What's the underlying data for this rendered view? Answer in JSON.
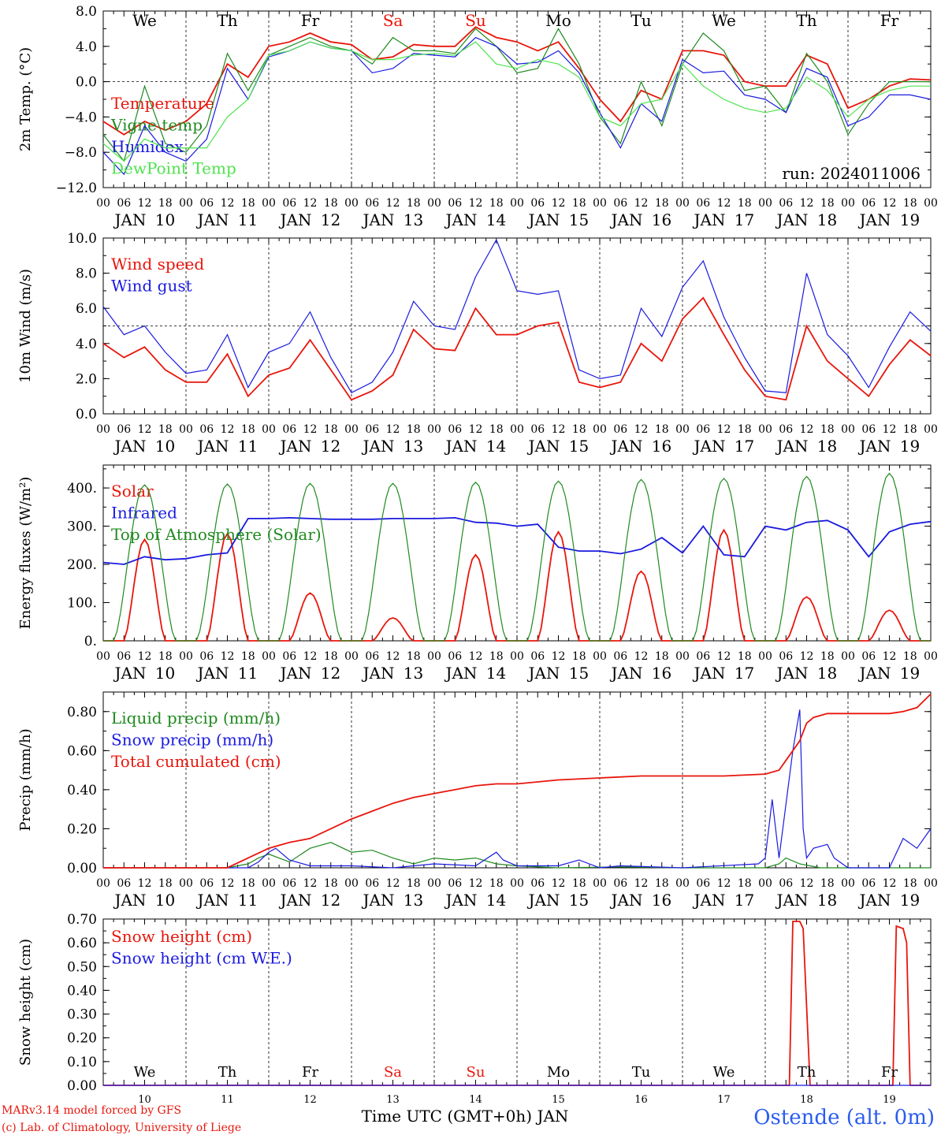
{
  "days": [
    "10",
    "11",
    "12",
    "13",
    "14",
    "15",
    "16",
    "17",
    "18",
    "19"
  ],
  "month": "JAN",
  "day_labels": [
    {
      "label": "We",
      "color": "#000000"
    },
    {
      "label": "Th",
      "color": "#000000"
    },
    {
      "label": "Fr",
      "color": "#000000"
    },
    {
      "label": "Sa",
      "color": "#e8160c"
    },
    {
      "label": "Su",
      "color": "#e8160c"
    },
    {
      "label": "Mo",
      "color": "#000000"
    },
    {
      "label": "Tu",
      "color": "#000000"
    },
    {
      "label": "We",
      "color": "#000000"
    },
    {
      "label": "Th",
      "color": "#000000"
    },
    {
      "label": "Fr",
      "color": "#000000"
    }
  ],
  "hour_ticks": [
    "00",
    "06",
    "12",
    "18"
  ],
  "run_label": "run: 2024011006",
  "xlabel": "Time UTC (GMT+0h) JAN",
  "station": "Ostende (alt. 0m)",
  "credit_line1": "MARv3.14 model forced by GFS",
  "credit_line2": "(c) Lab. of Climatology, University of Liege",
  "colors": {
    "red": "#e8160c",
    "green": "#1f8a1f",
    "blue": "#1a1ae0",
    "lightgreen": "#4ee34e",
    "station": "#2a5cf0"
  },
  "chart_data": [
    {
      "type": "line",
      "ylabel": "2m Temp. (°C)",
      "ylim": [
        -12,
        8
      ],
      "yticks": [
        {
          "v": 8,
          "label": "8.0"
        },
        {
          "v": 4,
          "label": "4.0"
        },
        {
          "v": 0,
          "label": "0.0"
        },
        {
          "v": -4,
          "label": "−4.0"
        },
        {
          "v": -8,
          "label": "−8.0"
        },
        {
          "v": -12,
          "label": "−12.0"
        }
      ],
      "reference_line": 0,
      "x_unit": "hours since Jan 10 00 UTC",
      "series": [
        {
          "name": "Temperature",
          "color": "red",
          "x": [
            0,
            6,
            12,
            18,
            24,
            30,
            36,
            42,
            48,
            54,
            60,
            66,
            72,
            78,
            84,
            90,
            96,
            102,
            108,
            114,
            120,
            126,
            132,
            138,
            144,
            150,
            156,
            162,
            168,
            174,
            180,
            186,
            192,
            198,
            204,
            210,
            216,
            222,
            228,
            234,
            240
          ],
          "y": [
            -4.5,
            -6,
            -4.5,
            -5.5,
            -4.5,
            -2.5,
            2,
            0.5,
            4,
            4.5,
            5.5,
            4.5,
            4.2,
            2.5,
            2.8,
            4.2,
            4,
            4,
            6.2,
            5,
            4.5,
            3.5,
            4.5,
            1.5,
            -2,
            -4.5,
            -1,
            -2,
            3.5,
            3.5,
            3,
            0,
            -0.5,
            -0.5,
            3,
            2,
            -3,
            -2,
            -0.5,
            0.3,
            0.2
          ]
        },
        {
          "name": "Vigne temp",
          "color": "green",
          "x": [
            0,
            6,
            12,
            18,
            24,
            30,
            36,
            42,
            48,
            54,
            60,
            66,
            72,
            78,
            84,
            90,
            96,
            102,
            108,
            114,
            120,
            126,
            132,
            138,
            144,
            150,
            156,
            162,
            168,
            174,
            180,
            186,
            192,
            198,
            204,
            210,
            216,
            222,
            228,
            234,
            240
          ],
          "y": [
            -6,
            -9,
            -0.5,
            -7,
            -8,
            -5,
            3.2,
            -1,
            3,
            4,
            5,
            4,
            3.5,
            2,
            5,
            3.5,
            3.5,
            3.2,
            6,
            4,
            1,
            1.5,
            6,
            2,
            -4,
            -7,
            0,
            -5,
            2,
            5.5,
            3.5,
            -1,
            -0.5,
            -3.5,
            3.2,
            0,
            -6,
            -2.5,
            0,
            0,
            0
          ]
        },
        {
          "name": "Humidex",
          "color": "blue",
          "x": [
            0,
            6,
            12,
            18,
            24,
            30,
            36,
            42,
            48,
            54,
            60,
            66,
            72,
            78,
            84,
            90,
            96,
            102,
            108,
            114,
            120,
            126,
            132,
            138,
            144,
            150,
            156,
            162,
            168,
            174,
            180,
            186,
            192,
            198,
            204,
            210,
            216,
            222,
            228,
            234,
            240
          ],
          "y": [
            -8,
            -10.5,
            -5,
            -8,
            -9,
            -6.5,
            1.5,
            -2,
            2.8,
            3.5,
            4.5,
            3.8,
            3.5,
            1,
            1.5,
            3.2,
            3,
            2.8,
            5,
            4,
            2,
            2.2,
            3.5,
            1,
            -3.5,
            -7.5,
            -2.5,
            -4.5,
            2.5,
            1,
            1.2,
            -1.5,
            -2,
            -3.5,
            1.5,
            0.5,
            -5,
            -4,
            -1.5,
            -1.5,
            -2
          ]
        },
        {
          "name": "DewPoint Temp",
          "color": "lightgreen",
          "x": [
            0,
            6,
            12,
            18,
            24,
            30,
            36,
            42,
            48,
            54,
            60,
            66,
            72,
            78,
            84,
            90,
            96,
            102,
            108,
            114,
            120,
            126,
            132,
            138,
            144,
            150,
            156,
            162,
            168,
            174,
            180,
            186,
            192,
            198,
            204,
            210,
            216,
            222,
            228,
            234,
            240
          ],
          "y": [
            -7,
            -9,
            -6.5,
            -7.5,
            -7.5,
            -7.5,
            -4,
            -2,
            3,
            3.5,
            4.5,
            3.8,
            3.5,
            2.5,
            2.5,
            3,
            3.2,
            3,
            4.5,
            2,
            1.5,
            2.5,
            2,
            0.5,
            -4,
            -5,
            -2.5,
            -2,
            2,
            -0.5,
            -2,
            -3,
            -3.5,
            -3,
            0.5,
            -1,
            -4,
            -2,
            -1,
            -0.5,
            -0.5
          ]
        }
      ]
    },
    {
      "type": "line",
      "ylabel": "10m Wind (m/s)",
      "ylim": [
        0,
        10
      ],
      "yticks": [
        {
          "v": 10,
          "label": "10.0"
        },
        {
          "v": 8,
          "label": "8.0"
        },
        {
          "v": 6,
          "label": "6.0"
        },
        {
          "v": 4,
          "label": "4.0"
        },
        {
          "v": 2,
          "label": "2.0"
        },
        {
          "v": 0,
          "label": "0.0"
        }
      ],
      "reference_line": 5,
      "x_unit": "hours since Jan 10 00 UTC",
      "series": [
        {
          "name": "Wind speed",
          "color": "red",
          "x": [
            0,
            6,
            12,
            18,
            24,
            30,
            36,
            42,
            48,
            54,
            60,
            66,
            72,
            78,
            84,
            90,
            96,
            102,
            108,
            114,
            120,
            126,
            132,
            138,
            144,
            150,
            156,
            162,
            168,
            174,
            180,
            186,
            192,
            198,
            204,
            210,
            216,
            222,
            228,
            234,
            240
          ],
          "y": [
            4,
            3.2,
            3.8,
            2.5,
            1.8,
            1.8,
            3.4,
            1,
            2.2,
            2.6,
            4.2,
            2.5,
            0.8,
            1.3,
            2.2,
            4.8,
            3.7,
            3.6,
            6,
            4.5,
            4.5,
            5,
            5.2,
            1.8,
            1.5,
            1.8,
            4,
            3,
            5.4,
            6.6,
            4.5,
            2.5,
            1,
            0.8,
            5,
            3,
            2,
            1,
            2.8,
            4.2,
            3.3
          ]
        },
        {
          "name": "Wind gust",
          "color": "blue",
          "x": [
            0,
            6,
            12,
            18,
            24,
            30,
            36,
            42,
            48,
            54,
            60,
            66,
            72,
            78,
            84,
            90,
            96,
            102,
            108,
            114,
            120,
            126,
            132,
            138,
            144,
            150,
            156,
            162,
            168,
            174,
            180,
            186,
            192,
            198,
            204,
            210,
            216,
            222,
            228,
            234,
            240
          ],
          "y": [
            6.1,
            4.5,
            5,
            3.5,
            2.3,
            2.5,
            4.5,
            1.5,
            3.5,
            4,
            5.8,
            3.2,
            1.2,
            1.8,
            3.5,
            6.4,
            5,
            4.8,
            7.8,
            9.9,
            7,
            6.8,
            7,
            2.5,
            2,
            2.2,
            6,
            4.4,
            7.2,
            8.7,
            5.5,
            3.2,
            1.3,
            1.2,
            8,
            4.5,
            3.3,
            1.5,
            3.8,
            5.8,
            4.7
          ]
        }
      ]
    },
    {
      "type": "line",
      "ylabel": "Energy fluxes (W/m²)",
      "ylim": [
        0,
        460
      ],
      "yticks": [
        {
          "v": 400,
          "label": "400."
        },
        {
          "v": 300,
          "label": "300."
        },
        {
          "v": 200,
          "label": "200."
        },
        {
          "v": 100,
          "label": "100."
        },
        {
          "v": 0,
          "label": "0."
        }
      ],
      "x_unit": "hours since Jan 10 00 UTC",
      "series": [
        {
          "name": "Solar",
          "color": "red",
          "peaks": [
            265,
            280,
            125,
            60,
            225,
            285,
            182,
            290,
            115,
            80
          ]
        },
        {
          "name": "Infrared",
          "color": "blue",
          "x": [
            0,
            6,
            12,
            18,
            24,
            30,
            36,
            42,
            48,
            54,
            60,
            66,
            72,
            78,
            84,
            90,
            96,
            102,
            108,
            114,
            120,
            126,
            132,
            138,
            144,
            150,
            156,
            162,
            168,
            174,
            180,
            186,
            192,
            198,
            204,
            210,
            216,
            222,
            228,
            234,
            240
          ],
          "y": [
            205,
            200,
            220,
            212,
            215,
            225,
            230,
            320,
            320,
            322,
            320,
            318,
            318,
            318,
            320,
            320,
            320,
            322,
            310,
            308,
            300,
            305,
            245,
            235,
            235,
            228,
            240,
            270,
            230,
            300,
            225,
            220,
            300,
            290,
            310,
            315,
            290,
            220,
            285,
            305,
            312
          ]
        },
        {
          "name": "Top of Atmosphere (Solar)",
          "color": "green",
          "peaks": [
            408,
            410,
            412,
            412,
            415,
            418,
            422,
            425,
            430,
            438
          ]
        }
      ]
    },
    {
      "type": "line",
      "ylabel": "Precip (mm/h)",
      "ylim": [
        0,
        0.9
      ],
      "yticks": [
        {
          "v": 0.8,
          "label": "0.80"
        },
        {
          "v": 0.6,
          "label": "0.60"
        },
        {
          "v": 0.4,
          "label": "0.40"
        },
        {
          "v": 0.2,
          "label": "0.20"
        },
        {
          "v": 0,
          "label": "0.00"
        }
      ],
      "x_unit": "hours since Jan 10 00 UTC",
      "series": [
        {
          "name": "Liquid precip (mm/h)",
          "color": "green",
          "x": [
            0,
            36,
            42,
            45,
            48,
            54,
            60,
            66,
            72,
            78,
            84,
            90,
            96,
            102,
            108,
            114,
            120,
            132,
            150,
            168,
            192,
            196,
            198,
            202,
            208,
            216,
            240
          ],
          "y": [
            0,
            0,
            0.02,
            0.05,
            0.07,
            0.03,
            0.1,
            0.13,
            0.08,
            0.09,
            0.05,
            0.02,
            0.05,
            0.04,
            0.05,
            0.02,
            0.01,
            0,
            0.005,
            0,
            0,
            0.02,
            0.05,
            0.02,
            0,
            0,
            0
          ]
        },
        {
          "name": "Snow precip (mm/h)",
          "color": "blue",
          "x": [
            0,
            36,
            42,
            45,
            48,
            50,
            54,
            60,
            72,
            84,
            96,
            108,
            114,
            116,
            120,
            132,
            138,
            144,
            150,
            168,
            190,
            192,
            194,
            196,
            200,
            202,
            203,
            204,
            206,
            210,
            212,
            216,
            228,
            232,
            236,
            240
          ],
          "y": [
            0,
            0,
            0,
            0.03,
            0.08,
            0.1,
            0.04,
            0.01,
            0.01,
            0,
            0.02,
            0.01,
            0.08,
            0.04,
            0.01,
            0.01,
            0.04,
            0,
            0.01,
            0,
            0.02,
            0.05,
            0.35,
            0.05,
            0.6,
            0.81,
            0.2,
            0.05,
            0.1,
            0.12,
            0.05,
            0,
            0,
            0.15,
            0.1,
            0.2
          ]
        },
        {
          "name": "Total cumulated (cm)",
          "color": "red",
          "x": [
            0,
            36,
            42,
            48,
            54,
            60,
            66,
            72,
            78,
            84,
            90,
            96,
            102,
            108,
            114,
            120,
            132,
            144,
            156,
            168,
            180,
            192,
            196,
            198,
            202,
            204,
            206,
            210,
            216,
            228,
            232,
            236,
            240
          ],
          "y": [
            0,
            0,
            0.05,
            0.1,
            0.13,
            0.15,
            0.2,
            0.25,
            0.29,
            0.33,
            0.36,
            0.38,
            0.4,
            0.42,
            0.43,
            0.43,
            0.45,
            0.46,
            0.47,
            0.47,
            0.47,
            0.48,
            0.5,
            0.55,
            0.65,
            0.74,
            0.77,
            0.79,
            0.79,
            0.79,
            0.8,
            0.82,
            0.89
          ]
        }
      ]
    },
    {
      "type": "line",
      "ylabel": "Snow height (cm)",
      "ylim": [
        0,
        0.7
      ],
      "yticks": [
        {
          "v": 0.7,
          "label": "0.70"
        },
        {
          "v": 0.6,
          "label": "0.60"
        },
        {
          "v": 0.5,
          "label": "0.50"
        },
        {
          "v": 0.4,
          "label": "0.40"
        },
        {
          "v": 0.3,
          "label": "0.30"
        },
        {
          "v": 0.2,
          "label": "0.20"
        },
        {
          "v": 0.1,
          "label": "0.10"
        },
        {
          "v": 0,
          "label": "0.00"
        }
      ],
      "x_unit": "hours since Jan 10 00 UTC",
      "series": [
        {
          "name": "Snow height (cm)",
          "color": "red",
          "x": [
            0,
            199,
            200,
            202,
            203,
            205,
            228,
            229,
            230,
            232,
            233,
            234,
            240
          ],
          "y": [
            0,
            0,
            0.69,
            0.69,
            0.66,
            0,
            0,
            0,
            0.67,
            0.66,
            0.6,
            0,
            0
          ]
        },
        {
          "name": "Snow height (cm W.E.)",
          "color": "blue",
          "x": [
            0,
            240
          ],
          "y": [
            0,
            0
          ]
        }
      ]
    }
  ]
}
